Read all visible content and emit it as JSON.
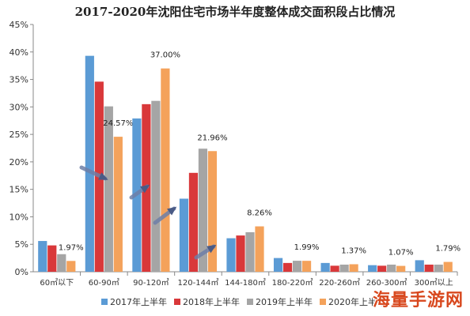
{
  "chart_data": {
    "type": "bar",
    "title": "2017-2020年沈阳住宅市场半年度整体成交面积段占比情况",
    "categories": [
      "60㎡以下",
      "60-90㎡",
      "90-120㎡",
      "120-144㎡",
      "144-180㎡",
      "180-220㎡",
      "220-260㎡",
      "260-300㎡",
      "300㎡以上"
    ],
    "series": [
      {
        "name": "2017年上半年",
        "color": "#5b9bd5",
        "values": [
          5.6,
          39.3,
          27.9,
          13.3,
          6.1,
          2.5,
          1.6,
          1.2,
          2.1
        ]
      },
      {
        "name": "2018年上半年",
        "color": "#d9383a",
        "values": [
          4.8,
          34.6,
          30.5,
          18.0,
          6.6,
          1.6,
          1.1,
          1.1,
          1.3
        ]
      },
      {
        "name": "2019年上半年",
        "color": "#a5a5a5",
        "values": [
          3.2,
          30.1,
          31.1,
          22.4,
          7.2,
          2.0,
          1.3,
          1.3,
          1.3
        ]
      },
      {
        "name": "2020年上半年",
        "color": "#f4a25b",
        "values": [
          1.97,
          24.57,
          37.0,
          21.96,
          8.26,
          1.99,
          1.37,
          1.07,
          1.79
        ]
      }
    ],
    "data_labels": [
      "1.97%",
      "24.57%",
      "37.00%",
      "21.96%",
      "8.26%",
      "1.99%",
      "1.37%",
      "1.07%",
      "1.79%"
    ],
    "y_ticks": [
      "0%",
      "5%",
      "10%",
      "15%",
      "20%",
      "25%",
      "30%",
      "35%",
      "40%",
      "45%"
    ],
    "ylim": [
      0,
      45
    ],
    "ylabel": "",
    "xlabel": "",
    "legend_position": "bottom",
    "grid": false
  },
  "watermark": "海量手游网"
}
